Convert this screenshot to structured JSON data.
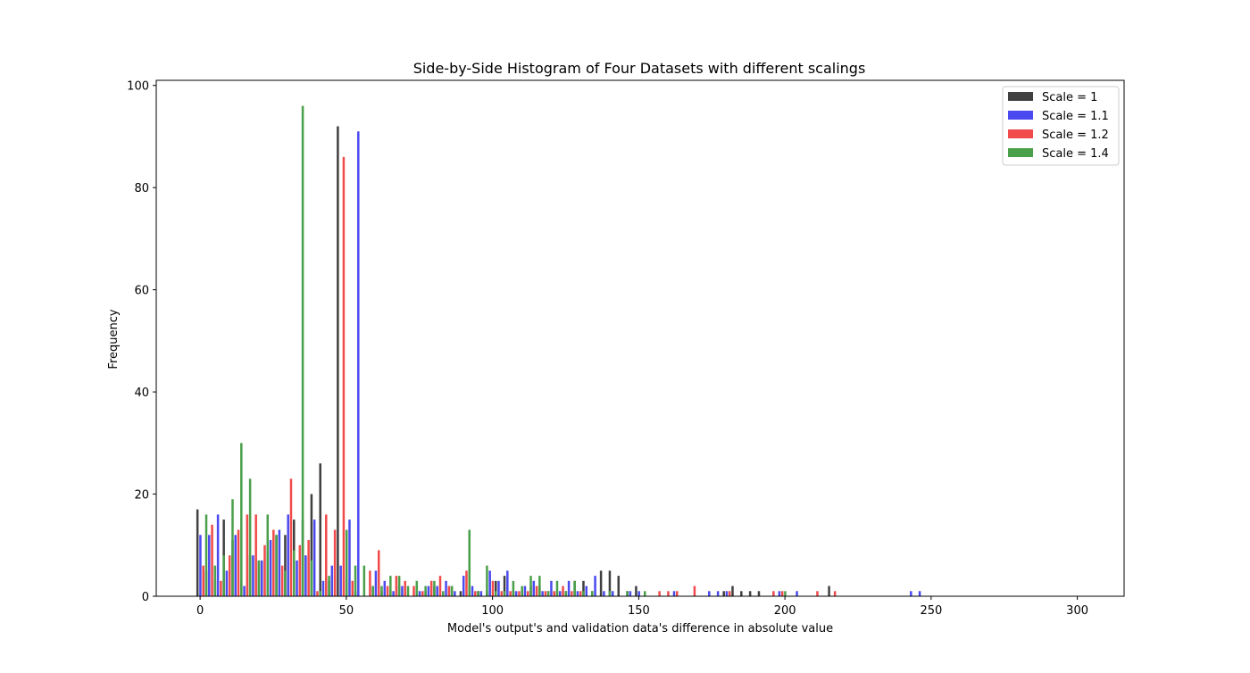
{
  "chart_data": {
    "type": "bar",
    "title": "Side-by-Side Histogram of Four Datasets with different scalings",
    "xlabel": "Model's output's and validation data's difference in absolute value",
    "ylabel": "Frequency",
    "xlim": [
      -15,
      316
    ],
    "ylim": [
      0,
      101
    ],
    "xticks": [
      0,
      50,
      100,
      150,
      200,
      250,
      300
    ],
    "yticks": [
      0,
      20,
      40,
      60,
      80,
      100
    ],
    "bin_width": 3.06,
    "legend_position": "top-right",
    "series": [
      {
        "name": "Scale = 1",
        "color": "#404040",
        "offset": -0.9,
        "bins": [
          [
            0,
            17
          ],
          [
            3,
            5
          ],
          [
            6,
            3
          ],
          [
            9,
            15
          ],
          [
            12,
            11
          ],
          [
            15,
            3
          ],
          [
            18,
            8
          ],
          [
            21,
            7
          ],
          [
            24,
            9
          ],
          [
            27,
            12
          ],
          [
            30,
            12
          ],
          [
            33,
            15
          ],
          [
            36,
            15
          ],
          [
            39,
            20
          ],
          [
            42,
            26
          ],
          [
            45,
            3
          ],
          [
            48,
            92
          ],
          [
            51,
            3
          ],
          [
            54,
            1
          ],
          [
            57,
            0
          ],
          [
            60,
            2
          ],
          [
            63,
            1
          ],
          [
            66,
            1
          ],
          [
            69,
            2
          ],
          [
            72,
            0
          ],
          [
            75,
            2
          ],
          [
            78,
            1
          ],
          [
            81,
            2
          ],
          [
            84,
            0
          ],
          [
            87,
            2
          ],
          [
            90,
            1
          ],
          [
            93,
            2
          ],
          [
            96,
            1
          ],
          [
            99,
            1
          ],
          [
            102,
            3
          ],
          [
            105,
            4
          ],
          [
            108,
            1
          ],
          [
            111,
            1
          ],
          [
            114,
            2
          ],
          [
            117,
            2
          ],
          [
            120,
            1
          ],
          [
            123,
            1
          ],
          [
            126,
            1
          ],
          [
            129,
            3
          ],
          [
            132,
            3
          ],
          [
            135,
            1
          ],
          [
            138,
            5
          ],
          [
            141,
            5
          ],
          [
            144,
            4
          ],
          [
            147,
            1
          ],
          [
            150,
            2
          ],
          [
            180,
            1
          ],
          [
            183,
            2
          ],
          [
            186,
            1
          ],
          [
            189,
            1
          ],
          [
            192,
            1
          ],
          [
            216,
            2
          ]
        ]
      },
      {
        "name": "Scale = 1.1",
        "color": "#4a4af0",
        "offset": 0.1,
        "bins": [
          [
            0,
            12
          ],
          [
            3,
            12
          ],
          [
            6,
            16
          ],
          [
            9,
            5
          ],
          [
            12,
            12
          ],
          [
            15,
            2
          ],
          [
            18,
            8
          ],
          [
            21,
            7
          ],
          [
            24,
            11
          ],
          [
            27,
            13
          ],
          [
            30,
            16
          ],
          [
            33,
            7
          ],
          [
            36,
            8
          ],
          [
            39,
            15
          ],
          [
            42,
            3
          ],
          [
            45,
            6
          ],
          [
            48,
            6
          ],
          [
            51,
            15
          ],
          [
            54,
            91
          ],
          [
            57,
            0
          ],
          [
            60,
            5
          ],
          [
            63,
            3
          ],
          [
            66,
            1
          ],
          [
            69,
            2
          ],
          [
            72,
            0
          ],
          [
            75,
            1
          ],
          [
            78,
            2
          ],
          [
            81,
            2
          ],
          [
            84,
            3
          ],
          [
            87,
            1
          ],
          [
            90,
            4
          ],
          [
            93,
            2
          ],
          [
            96,
            1
          ],
          [
            99,
            5
          ],
          [
            102,
            3
          ],
          [
            105,
            5
          ],
          [
            108,
            1
          ],
          [
            111,
            2
          ],
          [
            114,
            3
          ],
          [
            117,
            1
          ],
          [
            120,
            3
          ],
          [
            123,
            1
          ],
          [
            126,
            3
          ],
          [
            129,
            1
          ],
          [
            132,
            2
          ],
          [
            135,
            4
          ],
          [
            138,
            1
          ],
          [
            141,
            1
          ],
          [
            147,
            1
          ],
          [
            150,
            1
          ],
          [
            162,
            1
          ],
          [
            174,
            1
          ],
          [
            177,
            1
          ],
          [
            180,
            1
          ],
          [
            198,
            1
          ],
          [
            204,
            1
          ],
          [
            243,
            1
          ],
          [
            246,
            1
          ]
        ]
      },
      {
        "name": "Scale = 1.2",
        "color": "#f04a4a",
        "offset": 1.1,
        "bins": [
          [
            0,
            6
          ],
          [
            3,
            14
          ],
          [
            6,
            3
          ],
          [
            9,
            8
          ],
          [
            12,
            13
          ],
          [
            15,
            16
          ],
          [
            18,
            16
          ],
          [
            21,
            10
          ],
          [
            24,
            13
          ],
          [
            27,
            6
          ],
          [
            30,
            23
          ],
          [
            33,
            10
          ],
          [
            36,
            11
          ],
          [
            39,
            1
          ],
          [
            42,
            16
          ],
          [
            45,
            13
          ],
          [
            48,
            86
          ],
          [
            51,
            3
          ],
          [
            54,
            0
          ],
          [
            57,
            5
          ],
          [
            60,
            9
          ],
          [
            63,
            2
          ],
          [
            66,
            4
          ],
          [
            69,
            3
          ],
          [
            72,
            2
          ],
          [
            75,
            1
          ],
          [
            78,
            3
          ],
          [
            81,
            4
          ],
          [
            84,
            2
          ],
          [
            87,
            0
          ],
          [
            90,
            5
          ],
          [
            93,
            1
          ],
          [
            96,
            0
          ],
          [
            99,
            3
          ],
          [
            102,
            1
          ],
          [
            105,
            1
          ],
          [
            108,
            1
          ],
          [
            111,
            1
          ],
          [
            114,
            2
          ],
          [
            117,
            1
          ],
          [
            120,
            1
          ],
          [
            123,
            2
          ],
          [
            126,
            1
          ],
          [
            129,
            1
          ],
          [
            135,
            0
          ],
          [
            156,
            1
          ],
          [
            159,
            1
          ],
          [
            162,
            1
          ],
          [
            168,
            2
          ],
          [
            180,
            1
          ],
          [
            195,
            1
          ],
          [
            198,
            1
          ],
          [
            210,
            1
          ],
          [
            216,
            1
          ]
        ]
      },
      {
        "name": "Scale = 1.4",
        "color": "#4aa04a",
        "offset": 2.1,
        "bins": [
          [
            0,
            16
          ],
          [
            3,
            6
          ],
          [
            6,
            8
          ],
          [
            9,
            19
          ],
          [
            12,
            30
          ],
          [
            15,
            23
          ],
          [
            18,
            7
          ],
          [
            21,
            16
          ],
          [
            24,
            12
          ],
          [
            27,
            5
          ],
          [
            30,
            9
          ],
          [
            33,
            96
          ],
          [
            36,
            7
          ],
          [
            39,
            1
          ],
          [
            42,
            4
          ],
          [
            45,
            0
          ],
          [
            48,
            13
          ],
          [
            51,
            6
          ],
          [
            54,
            6
          ],
          [
            57,
            2
          ],
          [
            60,
            2
          ],
          [
            63,
            4
          ],
          [
            66,
            4
          ],
          [
            69,
            2
          ],
          [
            72,
            3
          ],
          [
            75,
            2
          ],
          [
            78,
            3
          ],
          [
            81,
            1
          ],
          [
            84,
            2
          ],
          [
            87,
            0
          ],
          [
            90,
            13
          ],
          [
            93,
            1
          ],
          [
            96,
            6
          ],
          [
            99,
            1
          ],
          [
            102,
            1
          ],
          [
            105,
            3
          ],
          [
            108,
            2
          ],
          [
            111,
            4
          ],
          [
            114,
            4
          ],
          [
            117,
            1
          ],
          [
            120,
            3
          ],
          [
            123,
            1
          ],
          [
            126,
            3
          ],
          [
            129,
            1
          ],
          [
            132,
            1
          ],
          [
            138,
            1
          ],
          [
            144,
            1
          ],
          [
            150,
            1
          ],
          [
            198,
            1
          ]
        ]
      }
    ]
  }
}
